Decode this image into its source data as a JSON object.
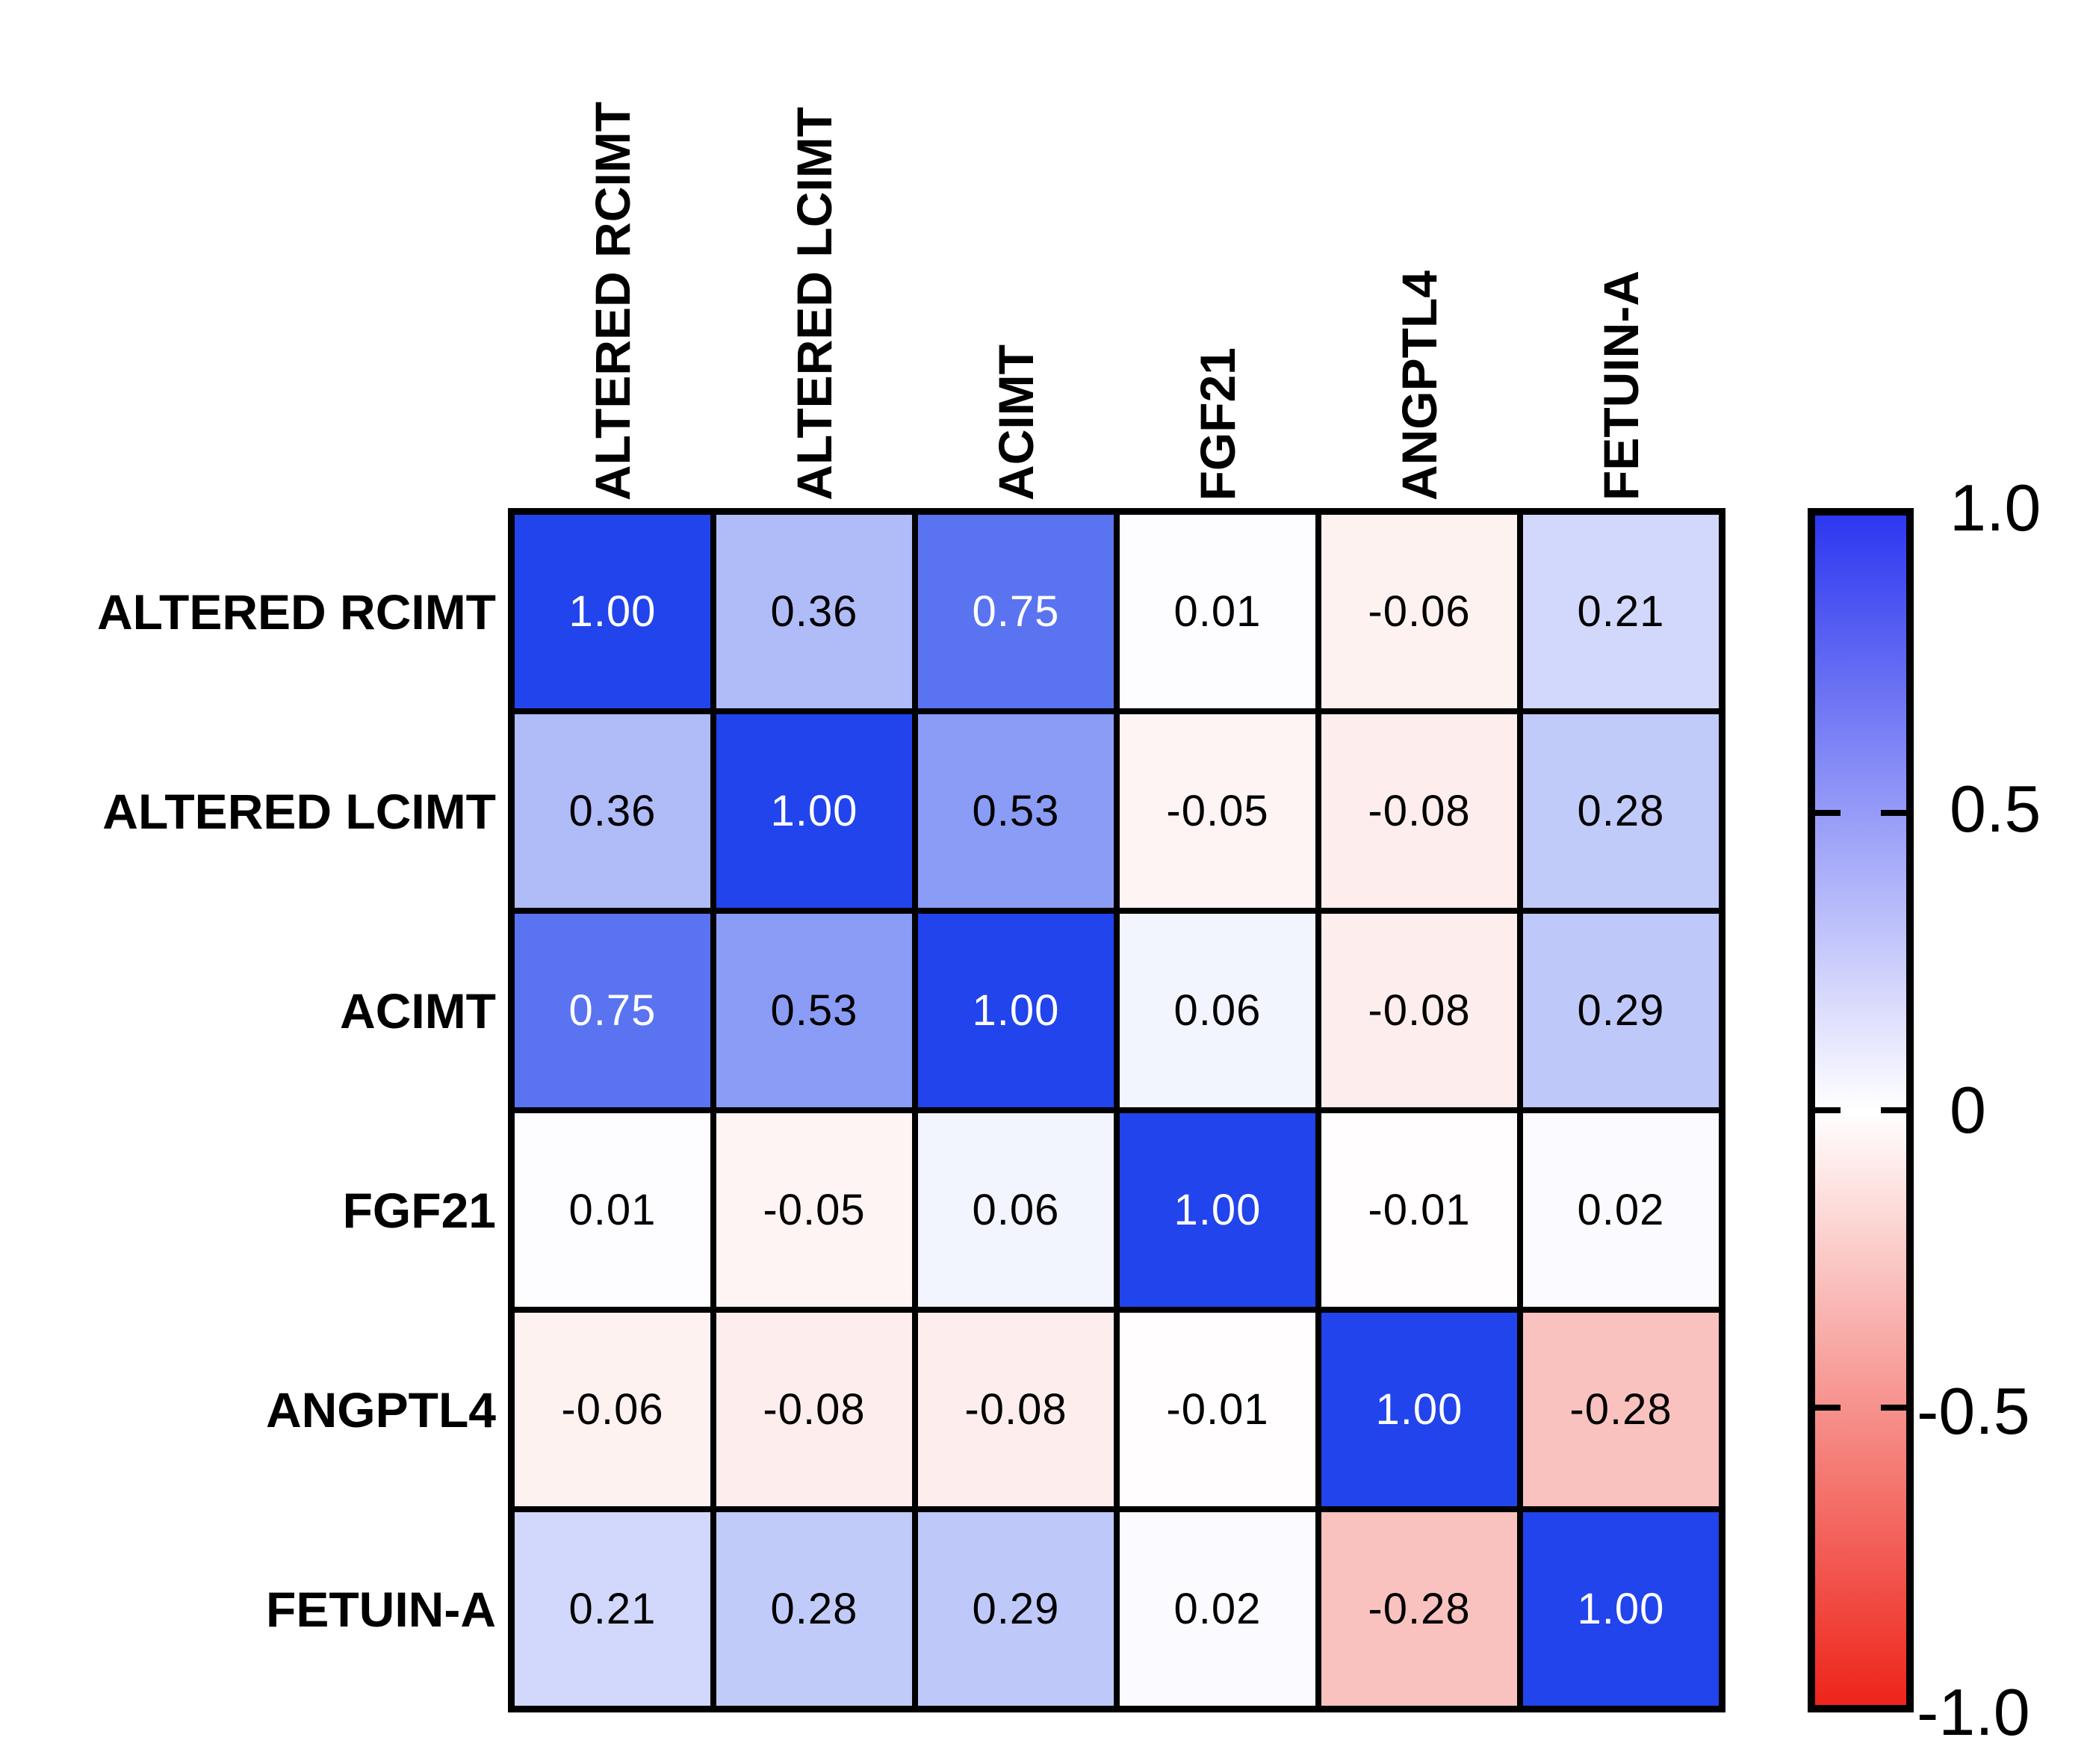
{
  "chart_data": {
    "type": "heatmap",
    "subtype": "correlation-matrix",
    "title": "",
    "x_labels": [
      "ALTERED RCIMT",
      "ALTERED LCIMT",
      "ACIMT",
      "FGF21",
      "ANGPTL4",
      "FETUIN-A"
    ],
    "y_labels": [
      "ALTERED RCIMT",
      "ALTERED LCIMT",
      "ACIMT",
      "FGF21",
      "ANGPTL4",
      "FETUIN-A"
    ],
    "matrix": [
      [
        1.0,
        0.36,
        0.75,
        0.01,
        -0.06,
        0.21
      ],
      [
        0.36,
        1.0,
        0.53,
        -0.05,
        -0.08,
        0.28
      ],
      [
        0.75,
        0.53,
        1.0,
        0.06,
        -0.08,
        0.29
      ],
      [
        0.01,
        -0.05,
        0.06,
        1.0,
        -0.01,
        0.02
      ],
      [
        -0.06,
        -0.08,
        -0.08,
        -0.01,
        1.0,
        -0.28
      ],
      [
        0.21,
        0.28,
        0.29,
        0.02,
        -0.28,
        1.0
      ]
    ],
    "value_decimals": 2,
    "colormap": {
      "positive_max": "#2244EC",
      "zero": "#FFFFFF",
      "negative_max": "#E8241C"
    },
    "grid_line_color": "#000000",
    "colorbar": {
      "orientation": "vertical",
      "position": "right",
      "min": -1.0,
      "max": 1.0,
      "top_color": "#2D37F0",
      "mid_color": "#FFFFFF",
      "bottom_color": "#EE241A",
      "tick_values": [
        1.0,
        0.5,
        0,
        -0.5,
        -1.0
      ],
      "tick_labels": [
        "1.0",
        "0.5",
        "0",
        "-0.5",
        "-1.0"
      ]
    }
  }
}
